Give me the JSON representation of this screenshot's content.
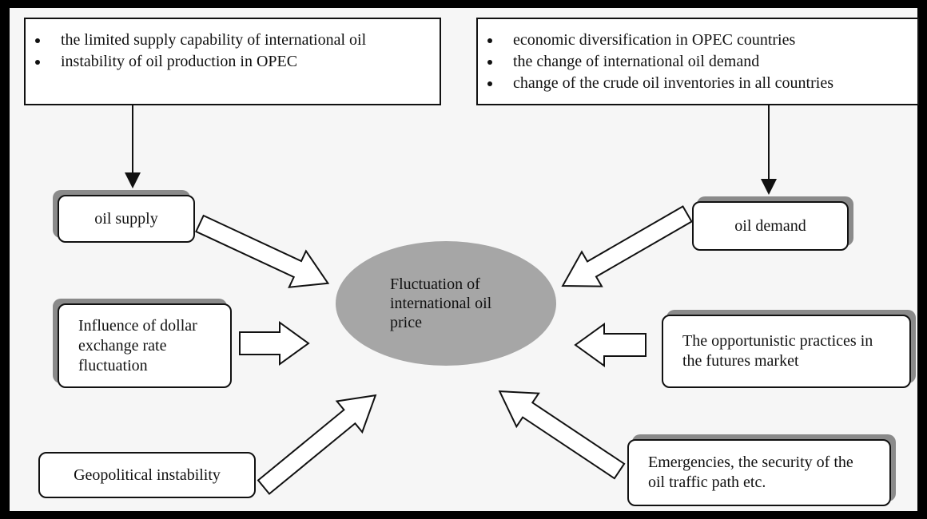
{
  "supply_factors": {
    "items": [
      "the limited supply capability of international oil",
      "instability of oil production in OPEC"
    ]
  },
  "demand_factors": {
    "items": [
      "economic diversification in OPEC countries",
      "the change of international oil demand",
      "change of the crude oil inventories in all countries"
    ]
  },
  "center": {
    "label": "Fluctuation of international oil price"
  },
  "nodes": [
    {
      "label": "oil supply"
    },
    {
      "label": "oil demand"
    },
    {
      "label": "Influence of dollar exchange rate fluctuation"
    },
    {
      "label": "The opportunistic practices in the futures market"
    },
    {
      "label": "Geopolitical instability"
    },
    {
      "label": "Emergencies, the security of the oil traffic path etc."
    }
  ]
}
